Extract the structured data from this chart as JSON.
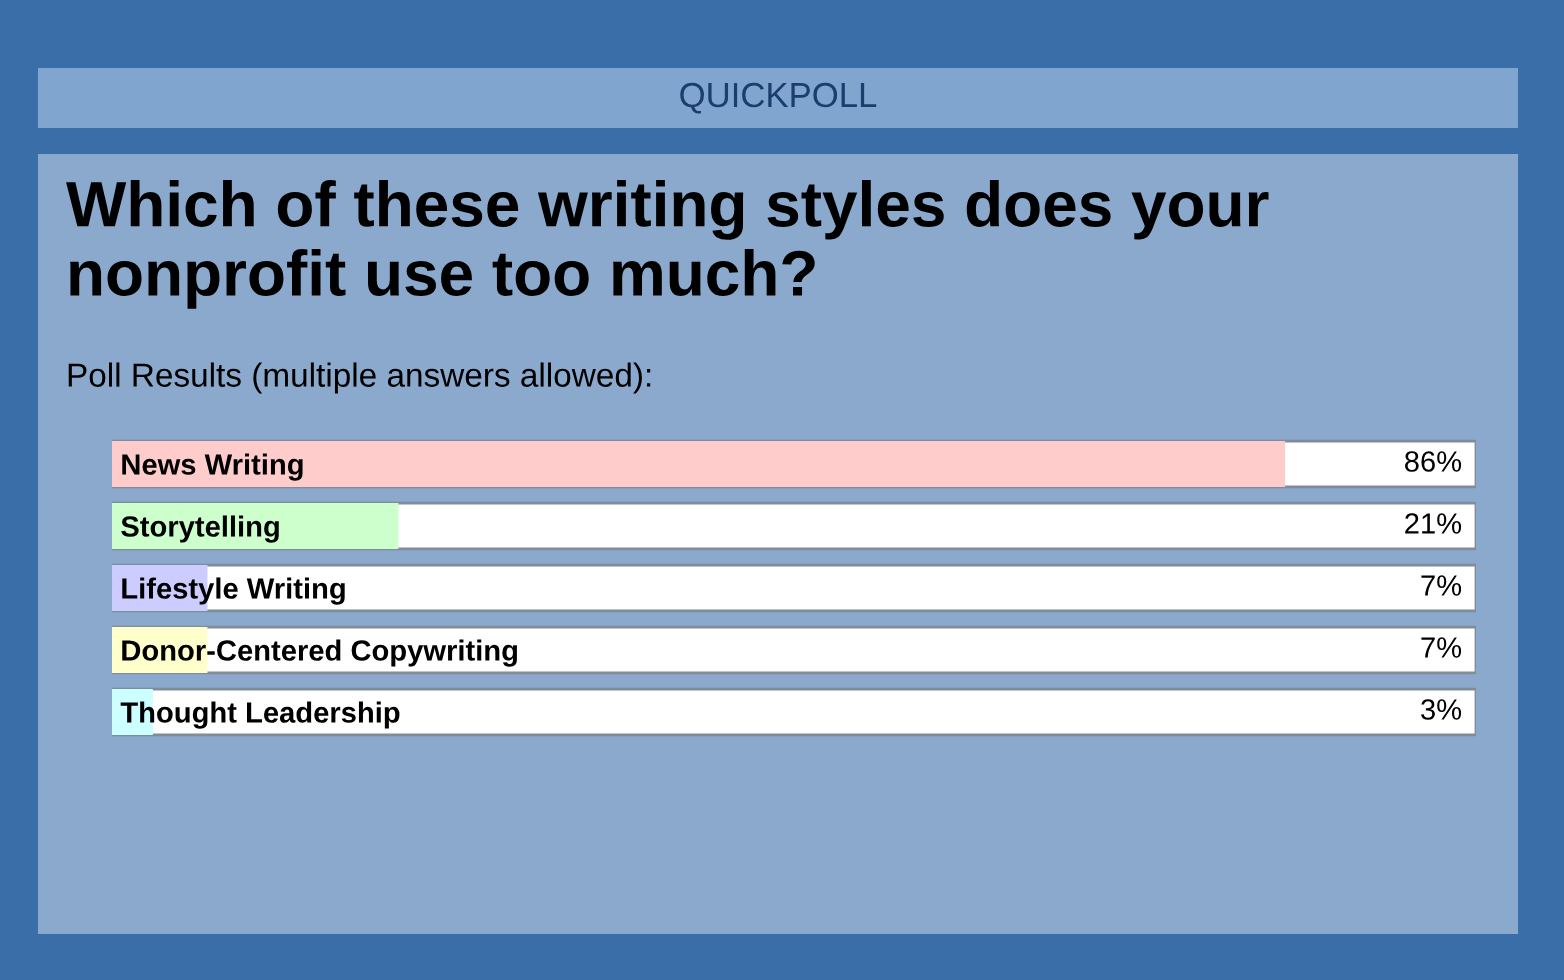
{
  "chart_data": {
    "type": "bar",
    "orientation": "horizontal",
    "title": "Which of these writing styles does your nonprofit use too much?",
    "subtitle": "Poll Results (multiple answers allowed):",
    "annotations": [
      "QUICKPOLL"
    ],
    "categories": [
      "News Writing",
      "Storytelling",
      "Lifestyle Writing",
      "Donor-Centered Copywriting",
      "Thought Leadership"
    ],
    "values": [
      86,
      21,
      7,
      7,
      3
    ],
    "colors": [
      "#ffcccc",
      "#ccffcc",
      "#ccccff",
      "#ffffcc",
      "#ccffff"
    ],
    "value_labels": [
      "86%",
      "21%",
      "7%",
      "7%",
      "3%"
    ],
    "xlim": [
      0,
      100
    ],
    "tick_labels": "y"
  }
}
